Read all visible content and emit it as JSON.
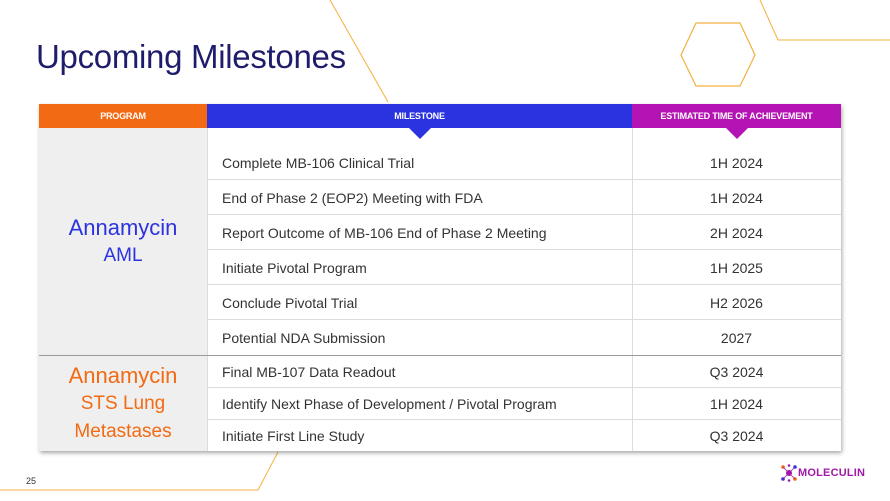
{
  "title": "Upcoming Milestones",
  "headers": {
    "program": "PROGRAM",
    "milestone": "MILESTONE",
    "eta": "ESTIMATED TIME OF ACHIEVEMENT"
  },
  "groups": [
    {
      "program_line1": "Annamycin",
      "program_line2": "AML",
      "rows": [
        {
          "milestone": "Complete MB-106 Clinical Trial",
          "eta": "1H 2024"
        },
        {
          "milestone": "End of Phase 2 (EOP2) Meeting with FDA",
          "eta": "1H 2024"
        },
        {
          "milestone": "Report Outcome of MB-106 End of Phase 2 Meeting",
          "eta": "2H 2024"
        },
        {
          "milestone": "Initiate Pivotal Program",
          "eta": "1H 2025"
        },
        {
          "milestone": "Conclude Pivotal Trial",
          "eta": "H2 2026"
        },
        {
          "milestone": "Potential NDA Submission",
          "eta": "2027"
        }
      ]
    },
    {
      "program_line1": "Annamycin",
      "program_line2": "STS Lung",
      "program_line3": "Metastases",
      "rows": [
        {
          "milestone": "Final MB-107 Data Readout",
          "eta": "Q3 2024"
        },
        {
          "milestone": "Identify Next Phase of Development / Pivotal Program",
          "eta": "1H 2024"
        },
        {
          "milestone": "Initiate First Line Study",
          "eta": "Q3 2024"
        }
      ]
    }
  ],
  "page_number": "25",
  "logo_text": "MOLECULIN",
  "colors": {
    "title": "#1f1d6b",
    "program_header": "#f26a13",
    "milestone_header": "#2b33e0",
    "eta_header": "#b314b3",
    "decoration": "#f5a623"
  }
}
